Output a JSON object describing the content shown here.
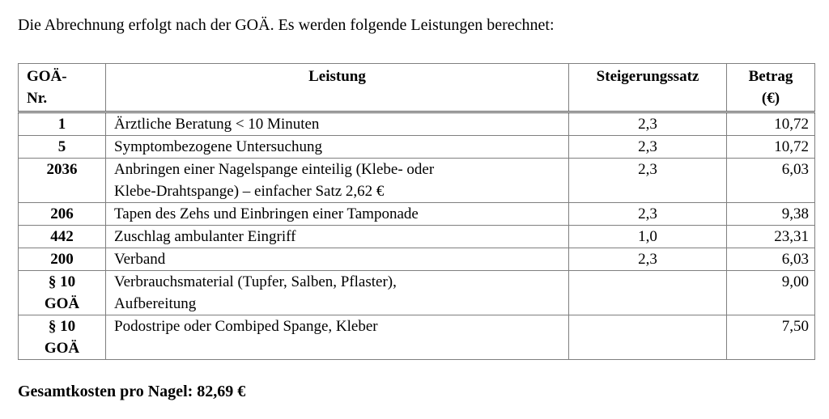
{
  "intro": "Die Abrechnung erfolgt nach der GOÄ. Es werden folgende Leistungen berechnet:",
  "table": {
    "headers": {
      "nr": "GOÄ-\nNr.",
      "leistung": "Leistung",
      "satz": "Steigerungssatz",
      "betrag": "Betrag\n(€)"
    },
    "rows": [
      {
        "nr": "1",
        "leistung": "Ärztliche Beratung < 10 Minuten",
        "satz": "2,3",
        "betrag": "10,72"
      },
      {
        "nr": "5",
        "leistung": "Symptombezogene Untersuchung",
        "satz": "2,3",
        "betrag": "10,72"
      },
      {
        "nr": "2036",
        "leistung": "Anbringen einer Nagelspange einteilig (Klebe- oder\nKlebe-Drahtspange) – einfacher Satz 2,62 €",
        "satz": "2,3",
        "betrag": "6,03"
      },
      {
        "nr": "206",
        "leistung": "Tapen des Zehs und Einbringen einer Tamponade",
        "satz": "2,3",
        "betrag": "9,38"
      },
      {
        "nr": "442",
        "leistung": "Zuschlag ambulanter Eingriff",
        "satz": "1,0",
        "betrag": "23,31"
      },
      {
        "nr": "200",
        "leistung": "Verband",
        "satz": "2,3",
        "betrag": "6,03"
      },
      {
        "nr": "§ 10\nGOÄ",
        "leistung": "Verbrauchsmaterial (Tupfer, Salben, Pflaster),\nAufbereitung",
        "satz": "",
        "betrag": "9,00"
      },
      {
        "nr": "§ 10\nGOÄ",
        "leistung": "Podostripe oder Combiped Spange, Kleber",
        "satz": "",
        "betrag": "7,50"
      }
    ]
  },
  "total_line": "Gesamtkosten pro Nagel: 82,69 €",
  "colors": {
    "grid_border": "#7f7f7f",
    "header_rule": "#4d4d4d",
    "text": "#000000",
    "background": "#ffffff"
  }
}
